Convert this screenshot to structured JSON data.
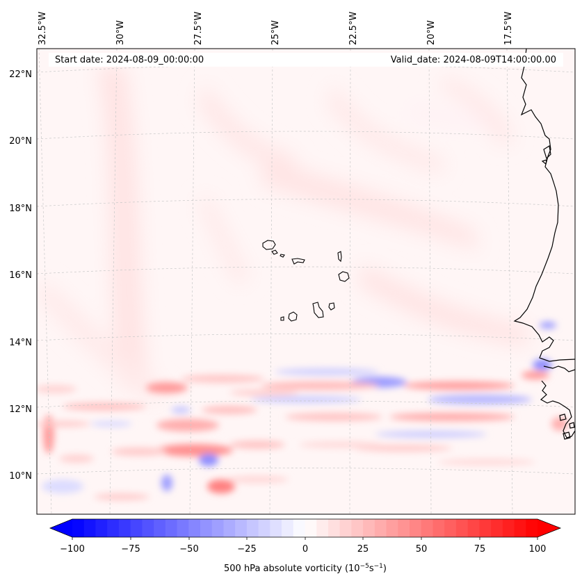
{
  "header": {
    "start_date": "Start date: 2024-08-09_00:00:00",
    "valid_date": "Valid_date: 2024-08-09T14:00:00.00"
  },
  "axes": {
    "lon_labels": [
      "32.5°W",
      "30°W",
      "27.5°W",
      "25°W",
      "22.5°W",
      "20°W",
      "17.5°W"
    ],
    "lat_labels": [
      "22°N",
      "20°N",
      "18°N",
      "16°N",
      "14°N",
      "12°N",
      "10°N"
    ]
  },
  "colorbar": {
    "tick_labels": [
      "−100",
      "−75",
      "−50",
      "−25",
      "0",
      "25",
      "50",
      "75",
      "100"
    ],
    "label_prefix": "500 hPa absolute vorticity (10",
    "label_exp1": "−5",
    "label_mid": "s",
    "label_exp2": "−1",
    "label_suffix": ")",
    "min_color": "#0000ff",
    "mid_color": "#ffffff",
    "max_color": "#ff0000"
  },
  "chart_data": {
    "type": "heatmap",
    "variable": "500 hPa absolute vorticity",
    "units": "1e-5 s^-1",
    "value_range": [
      -100,
      100
    ],
    "extend": "both",
    "lon_range": [
      -32.8,
      -15.8
    ],
    "lat_range": [
      8.9,
      22.8
    ],
    "colormap": "bwr",
    "gridlines": true
  }
}
